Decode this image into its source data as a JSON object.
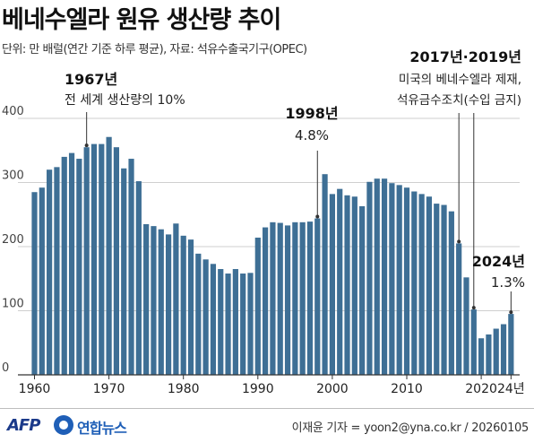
{
  "header": {
    "title": "베네수엘라 원유 생산량 추이",
    "subtitle": "단위: 만 배럴(연간 기준 하루 평균), 자료: 석유수출국기구(OPEC)"
  },
  "footer": {
    "logo_afp": "AFP",
    "logo_yna": "연합뉴스",
    "credit": "이재윤 기자 = yoon2@yna.co.kr / 20260105"
  },
  "colors": {
    "bar": "#3e6f95",
    "grid": "#cfcfcf",
    "annotation_line": "#333333"
  },
  "chart_data": {
    "type": "bar",
    "title": "베네수엘라 원유 생산량 추이",
    "ylim": [
      0,
      400
    ],
    "y_ticks": [
      0,
      100,
      200,
      300,
      400
    ],
    "y_tick_labels": [
      "0",
      "100",
      "200",
      "300",
      "400"
    ],
    "x_tick_values": [
      1960,
      1970,
      1980,
      1990,
      2000,
      2010,
      2020,
      2024
    ],
    "x_tick_labels": [
      "1960",
      "1970",
      "1980",
      "1990",
      "2000",
      "2010",
      "2020",
      "24년"
    ],
    "grid": true,
    "x": [
      1960,
      1961,
      1962,
      1963,
      1964,
      1965,
      1966,
      1967,
      1968,
      1969,
      1970,
      1971,
      1972,
      1973,
      1974,
      1975,
      1976,
      1977,
      1978,
      1979,
      1980,
      1981,
      1982,
      1983,
      1984,
      1985,
      1986,
      1987,
      1988,
      1989,
      1990,
      1991,
      1992,
      1993,
      1994,
      1995,
      1996,
      1997,
      1998,
      1999,
      2000,
      2001,
      2002,
      2003,
      2004,
      2005,
      2006,
      2007,
      2008,
      2009,
      2010,
      2011,
      2012,
      2013,
      2014,
      2015,
      2016,
      2017,
      2018,
      2019,
      2020,
      2021,
      2022,
      2023,
      2024
    ],
    "values": [
      285,
      292,
      320,
      324,
      340,
      346,
      337,
      355,
      360,
      360,
      371,
      355,
      322,
      337,
      302,
      235,
      232,
      227,
      219,
      236,
      217,
      211,
      189,
      180,
      173,
      165,
      158,
      165,
      158,
      159,
      214,
      230,
      238,
      237,
      233,
      238,
      238,
      239,
      244,
      313,
      282,
      290,
      280,
      278,
      263,
      301,
      306,
      306,
      299,
      296,
      292,
      286,
      282,
      278,
      267,
      265,
      255,
      205,
      152,
      102,
      57,
      63,
      72,
      79,
      95
    ],
    "annotations": [
      {
        "year": 1967,
        "lines": [
          "1967년",
          "전 세계 생산량의 10%"
        ]
      },
      {
        "year": 1998,
        "lines": [
          "1998년",
          "4.8%"
        ]
      },
      {
        "year": 2017,
        "year2": 2019,
        "lines": [
          "2017년·2019년",
          "미국의 베네수엘라 제재,",
          "석유금수조치(수입 금지)"
        ]
      },
      {
        "year": 2024,
        "lines": [
          "2024년",
          "1.3%"
        ]
      }
    ]
  }
}
